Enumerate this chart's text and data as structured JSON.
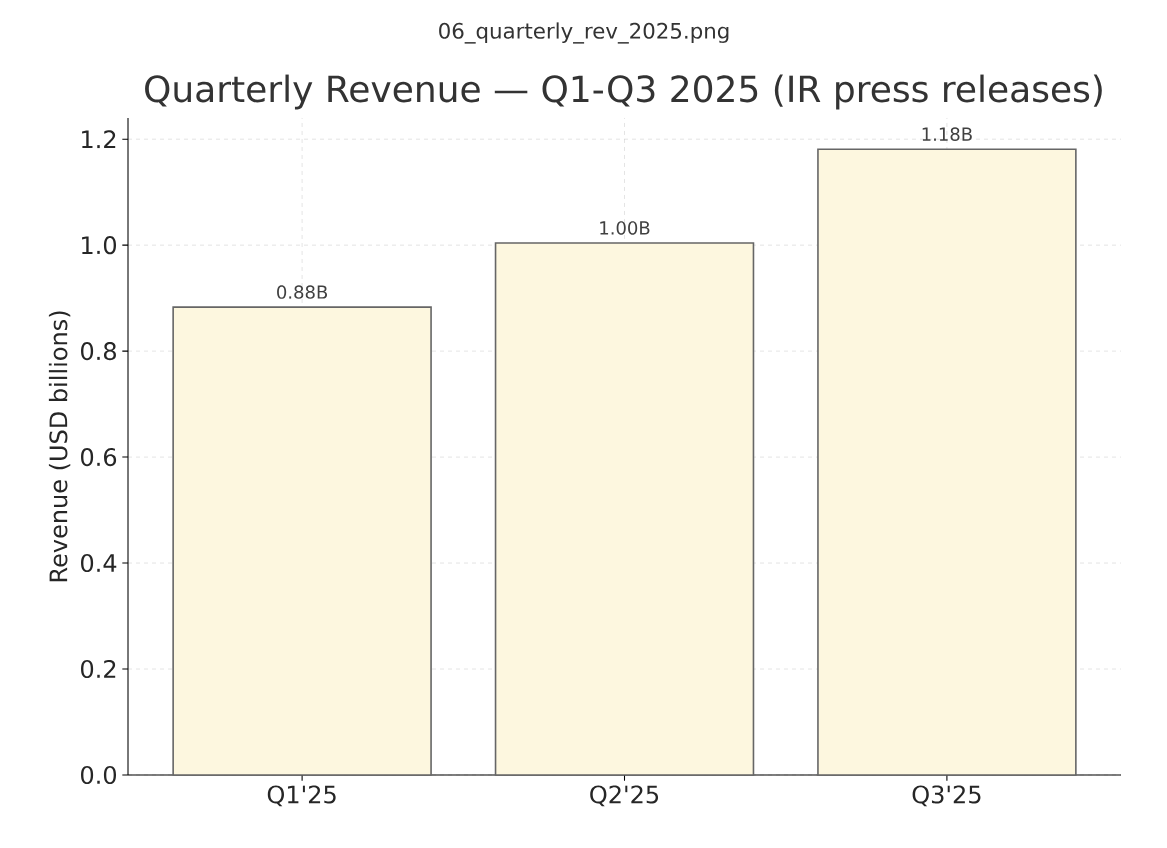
{
  "chart_data": {
    "type": "bar",
    "title": "Quarterly Revenue — Q1-Q3 2025 (IR press releases)",
    "annotations": [
      "06_quarterly_rev_2025.png"
    ],
    "ylabel": "Revenue (USD billions)",
    "categories": [
      "Q1'25",
      "Q2'25",
      "Q3'25"
    ],
    "values": [
      0.883,
      1.004,
      1.181
    ],
    "value_labels": [
      "0.88B",
      "1.00B",
      "1.18B"
    ],
    "color": "#fdf7df",
    "ylim": [
      0,
      1.24
    ],
    "yticks": [
      {
        "value": 0,
        "label": "0.0"
      },
      {
        "value": 0.2,
        "label": "0.2"
      },
      {
        "value": 0.4,
        "label": "0.4"
      },
      {
        "value": 0.6,
        "label": "0.6"
      },
      {
        "value": 0.8,
        "label": "0.8"
      },
      {
        "value": 1.0,
        "label": "1.0"
      },
      {
        "value": 1.2,
        "label": "1.2"
      }
    ],
    "grid": true
  }
}
